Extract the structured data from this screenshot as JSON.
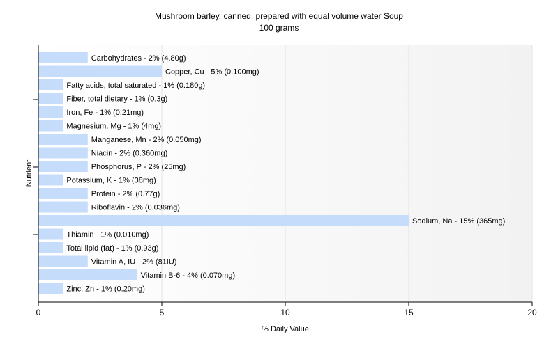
{
  "chart_data": {
    "type": "bar",
    "orientation": "horizontal",
    "title": "Mushroom barley, canned, prepared with equal volume water Soup",
    "subtitle": "100 grams",
    "xlabel": "% Daily Value",
    "ylabel": "Nutrient",
    "xlim": [
      0,
      20
    ],
    "xticks": [
      0,
      5,
      10,
      15,
      20
    ],
    "grid": true,
    "bar_color": "#c6dcfb",
    "categories": [
      "Carbohydrates",
      "Copper, Cu",
      "Fatty acids, total saturated",
      "Fiber, total dietary",
      "Iron, Fe",
      "Magnesium, Mg",
      "Manganese, Mn",
      "Niacin",
      "Phosphorus, P",
      "Potassium, K",
      "Protein",
      "Riboflavin",
      "Sodium, Na",
      "Thiamin",
      "Total lipid (fat)",
      "Vitamin A, IU",
      "Vitamin B-6",
      "Zinc, Zn"
    ],
    "values": [
      2,
      5,
      1,
      1,
      1,
      1,
      2,
      2,
      2,
      1,
      2,
      2,
      15,
      1,
      1,
      2,
      4,
      1
    ],
    "data_labels": [
      "Carbohydrates - 2% (4.80g)",
      "Copper, Cu - 5% (0.100mg)",
      "Fatty acids, total saturated - 1% (0.180g)",
      "Fiber, total dietary - 1% (0.3g)",
      "Iron, Fe - 1% (0.21mg)",
      "Magnesium, Mg - 1% (4mg)",
      "Manganese, Mn - 2% (0.050mg)",
      "Niacin - 2% (0.360mg)",
      "Phosphorus, P - 2% (25mg)",
      "Potassium, K - 1% (38mg)",
      "Protein - 2% (0.77g)",
      "Riboflavin - 2% (0.036mg)",
      "Sodium, Na - 15% (365mg)",
      "Thiamin - 1% (0.010mg)",
      "Total lipid (fat) - 1% (0.93g)",
      "Vitamin A, IU - 2% (81IU)",
      "Vitamin B-6 - 4% (0.070mg)",
      "Zinc, Zn - 1% (0.20mg)"
    ]
  }
}
